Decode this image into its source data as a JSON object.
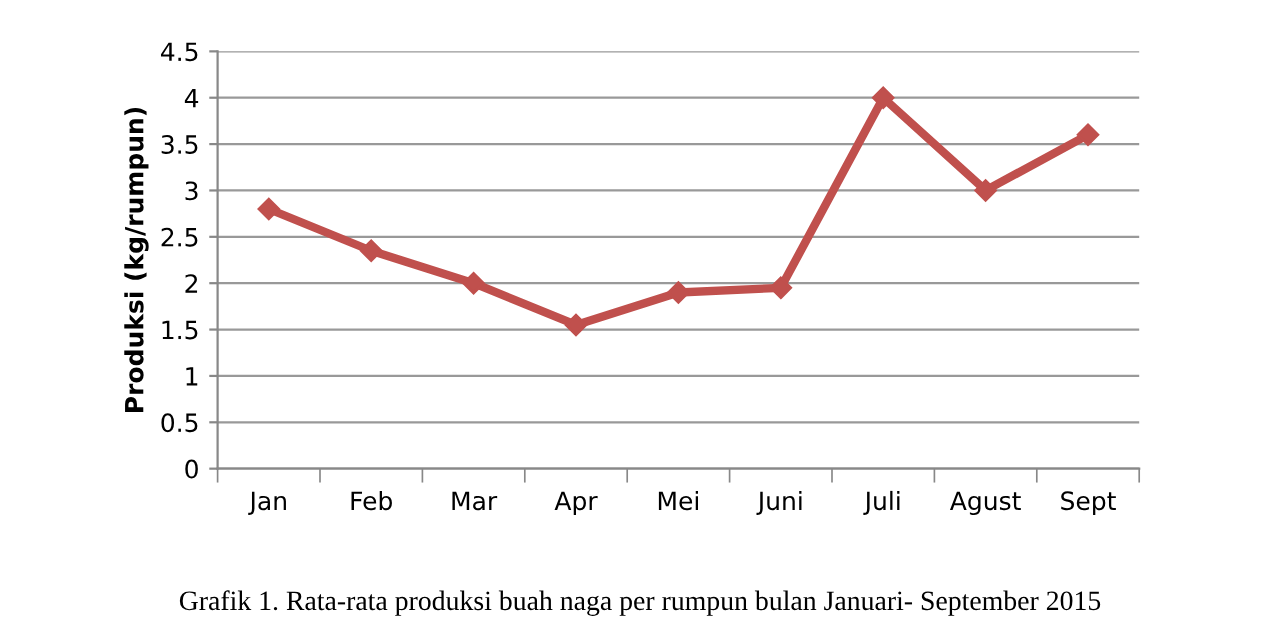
{
  "chart_data": {
    "type": "line",
    "title": "Grafik 1. Rata-rata produksi buah naga per rumpun bulan Januari- September 2015",
    "ylabel": "Produksi (kg/rumpun)",
    "categories": [
      "Jan",
      "Feb",
      "Mar",
      "Apr",
      "Mei",
      "Juni",
      "Juli",
      "Agust",
      "Sept"
    ],
    "series": [
      {
        "color": "#c0504d",
        "values": [
          2.8,
          2.35,
          2.0,
          1.55,
          1.9,
          1.95,
          4.0,
          3.0,
          3.6
        ]
      }
    ],
    "ylim": [
      0,
      4.5
    ],
    "yticks": [
      0,
      0.5,
      1,
      1.5,
      2,
      2.5,
      3,
      3.5,
      4,
      4.5
    ],
    "grid": "y",
    "marker": "diamond",
    "line_style": "solid",
    "legend": false
  }
}
